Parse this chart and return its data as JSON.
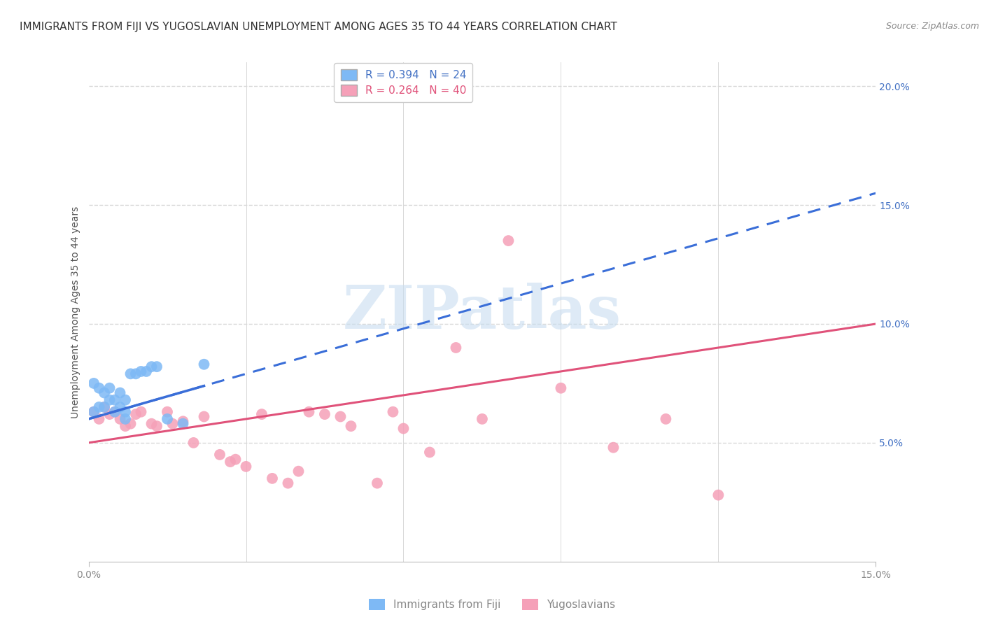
{
  "title": "IMMIGRANTS FROM FIJI VS YUGOSLAVIAN UNEMPLOYMENT AMONG AGES 35 TO 44 YEARS CORRELATION CHART",
  "source": "Source: ZipAtlas.com",
  "ylabel": "Unemployment Among Ages 35 to 44 years",
  "watermark": "ZIPatlas",
  "xlim": [
    0.0,
    0.15
  ],
  "ylim": [
    0.0,
    0.21
  ],
  "fiji_R": 0.394,
  "fiji_N": 24,
  "yugo_R": 0.264,
  "yugo_N": 40,
  "fiji_color": "#7EB9F5",
  "fiji_line_color": "#3A6ED8",
  "yugo_color": "#F5A0B8",
  "yugo_line_color": "#E0527A",
  "fiji_line_x": [
    0.0,
    0.15
  ],
  "fiji_line_y": [
    0.06,
    0.155
  ],
  "yugo_line_x": [
    0.0,
    0.15
  ],
  "yugo_line_y": [
    0.05,
    0.1
  ],
  "fiji_points_x": [
    0.001,
    0.001,
    0.002,
    0.002,
    0.003,
    0.003,
    0.004,
    0.004,
    0.005,
    0.005,
    0.006,
    0.006,
    0.007,
    0.007,
    0.007,
    0.008,
    0.009,
    0.01,
    0.011,
    0.012,
    0.013,
    0.015,
    0.018,
    0.022
  ],
  "fiji_points_y": [
    0.063,
    0.075,
    0.065,
    0.073,
    0.065,
    0.071,
    0.068,
    0.073,
    0.063,
    0.068,
    0.065,
    0.071,
    0.063,
    0.068,
    0.06,
    0.079,
    0.079,
    0.08,
    0.08,
    0.082,
    0.082,
    0.06,
    0.058,
    0.083
  ],
  "yugo_points_x": [
    0.001,
    0.002,
    0.003,
    0.004,
    0.005,
    0.006,
    0.007,
    0.008,
    0.009,
    0.01,
    0.012,
    0.013,
    0.015,
    0.016,
    0.018,
    0.02,
    0.022,
    0.025,
    0.027,
    0.028,
    0.03,
    0.033,
    0.035,
    0.038,
    0.04,
    0.042,
    0.045,
    0.048,
    0.05,
    0.055,
    0.058,
    0.06,
    0.065,
    0.07,
    0.075,
    0.08,
    0.09,
    0.1,
    0.11,
    0.12
  ],
  "yugo_points_y": [
    0.063,
    0.06,
    0.065,
    0.062,
    0.063,
    0.06,
    0.057,
    0.058,
    0.062,
    0.063,
    0.058,
    0.057,
    0.063,
    0.058,
    0.059,
    0.05,
    0.061,
    0.045,
    0.042,
    0.043,
    0.04,
    0.062,
    0.035,
    0.033,
    0.038,
    0.063,
    0.062,
    0.061,
    0.057,
    0.033,
    0.063,
    0.056,
    0.046,
    0.09,
    0.06,
    0.135,
    0.073,
    0.048,
    0.06,
    0.028
  ],
  "background_color": "#ffffff",
  "grid_color": "#d8d8d8",
  "title_fontsize": 11,
  "axis_label_fontsize": 10,
  "tick_fontsize": 10,
  "legend_fontsize": 11,
  "source_fontsize": 9,
  "watermark_fontsize": 62,
  "watermark_color": "#c8ddf0"
}
